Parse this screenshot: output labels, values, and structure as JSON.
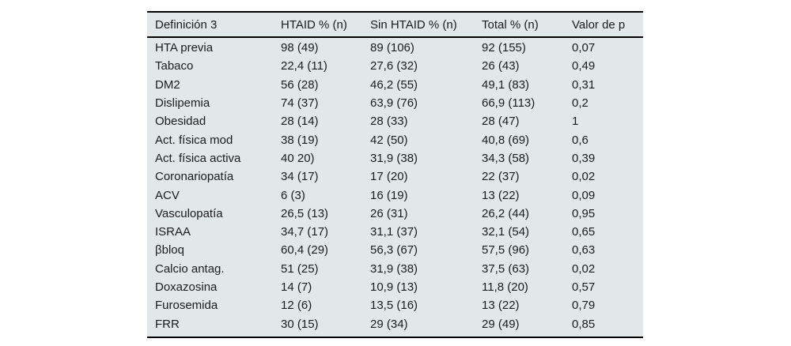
{
  "table": {
    "colors": {
      "background": "#e2e7e9",
      "text": "#1c1c1c",
      "rule": "#000000"
    },
    "columns": [
      {
        "label": "Definición 3"
      },
      {
        "label": "HTAID % (n)"
      },
      {
        "label": "Sin HTAID % (n)"
      },
      {
        "label": "Total % (n)"
      },
      {
        "label": "Valor de p"
      }
    ],
    "rows": [
      [
        "HTA previa",
        "98 (49)",
        "89 (106)",
        "92 (155)",
        "0,07"
      ],
      [
        "Tabaco",
        "22,4 (11)",
        "27,6 (32)",
        "26 (43)",
        "0,49"
      ],
      [
        "DM2",
        "56 (28)",
        "46,2 (55)",
        "49,1 (83)",
        "0,31"
      ],
      [
        "Dislipemia",
        "74 (37)",
        "63,9 (76)",
        "66,9 (113)",
        "0,2"
      ],
      [
        "Obesidad",
        "28 (14)",
        "28 (33)",
        "28 (47)",
        "1"
      ],
      [
        "Act. física mod",
        "38 (19)",
        "42 (50)",
        "40,8 (69)",
        "0,6"
      ],
      [
        "Act. física activa",
        "40 20)",
        "31,9 (38)",
        "34,3 (58)",
        "0,39"
      ],
      [
        "Coronariopatía",
        "34 (17)",
        "17 (20)",
        "22 (37)",
        "0,02"
      ],
      [
        "ACV",
        "6 (3)",
        "16 (19)",
        "13 (22)",
        "0,09"
      ],
      [
        "Vasculopatía",
        "26,5 (13)",
        "26 (31)",
        "26,2 (44)",
        "0,95"
      ],
      [
        "ISRAA",
        "34,7 (17)",
        "31,1 (37)",
        "32,1 (54)",
        "0,65"
      ],
      [
        "βbloq",
        "60,4 (29)",
        "56,3 (67)",
        "57,5 (96)",
        "0,63"
      ],
      [
        "Calcio antag.",
        "51 (25)",
        "31,9 (38)",
        "37,5 (63)",
        "0,02"
      ],
      [
        "Doxazosina",
        "14 (7)",
        "10,9 (13)",
        "11,8 (20)",
        "0,57"
      ],
      [
        "Furosemida",
        "12 (6)",
        "13,5 (16)",
        "13 (22)",
        "0,79"
      ],
      [
        "FRR",
        "30 (15)",
        "29 (34)",
        "29 (49)",
        "0,85"
      ]
    ]
  }
}
